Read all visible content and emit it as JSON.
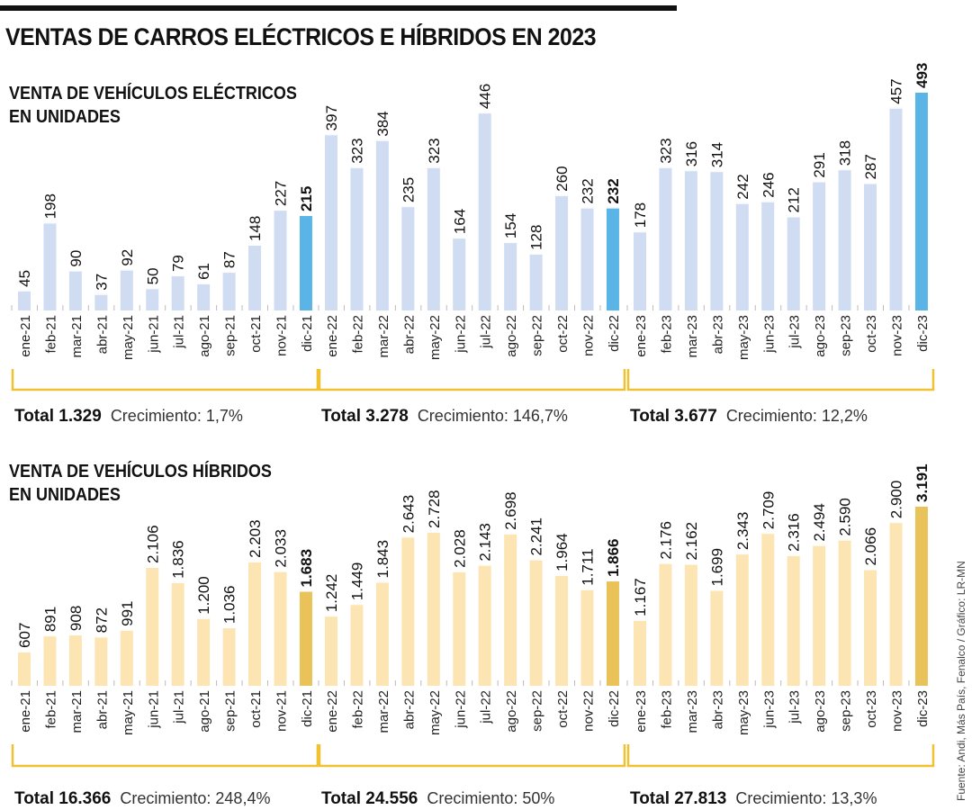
{
  "title": "VENTAS DE CARROS ELÉCTRICOS E HÍBRIDOS EN 2023",
  "source": "Fuente: Andi, Más País, Fenalco / Gráfico: LR-MN",
  "chart_data": [
    {
      "type": "bar",
      "title": "VENTA DE VEHÍCULOS ELÉCTRICOS EN UNIDADES",
      "title_lines": [
        "VENTA DE VEHÍCULOS ELÉCTRICOS",
        "EN UNIDADES"
      ],
      "colors": {
        "bar": "#cfdcf2",
        "highlight": "#5ab4e5",
        "bracket": "#f0c231"
      },
      "grid": false,
      "groups": [
        {
          "categories": [
            "ene-21",
            "feb-21",
            "mar-21",
            "abr-21",
            "may-21",
            "jun-21",
            "jul-21",
            "ago-21",
            "sep-21",
            "oct-21",
            "nov-21",
            "dic-21"
          ],
          "values": [
            45,
            198,
            90,
            37,
            92,
            50,
            79,
            61,
            87,
            148,
            227,
            215
          ],
          "value_labels": [
            "45",
            "198",
            "90",
            "37",
            "92",
            "50",
            "79",
            "61",
            "87",
            "148",
            "227",
            "215"
          ],
          "total_label": "Total 1.329",
          "growth_label": "Crecimiento: 1,7%"
        },
        {
          "categories": [
            "ene-22",
            "feb-22",
            "mar-22",
            "abr-22",
            "may-22",
            "jun-22",
            "jul-22",
            "ago-22",
            "sep-22",
            "oct-22",
            "nov-22",
            "dic-22"
          ],
          "values": [
            397,
            323,
            384,
            235,
            323,
            164,
            446,
            154,
            128,
            260,
            232,
            232
          ],
          "value_labels": [
            "397",
            "323",
            "384",
            "235",
            "323",
            "164",
            "446",
            "154",
            "128",
            "260",
            "232",
            "232"
          ],
          "total_label": "Total 3.278",
          "growth_label": "Crecimiento: 146,7%"
        },
        {
          "categories": [
            "ene-23",
            "feb-23",
            "mar-23",
            "abr-23",
            "may-23",
            "jun-23",
            "jul-23",
            "ago-23",
            "sep-23",
            "oct-23",
            "nov-23",
            "dic-23"
          ],
          "values": [
            178,
            323,
            316,
            314,
            242,
            246,
            212,
            291,
            318,
            287,
            457,
            493
          ],
          "value_labels": [
            "178",
            "323",
            "316",
            "314",
            "242",
            "246",
            "212",
            "291",
            "318",
            "287",
            "457",
            "493"
          ],
          "total_label": "Total 3.677",
          "growth_label": "Crecimiento: 12,2%"
        }
      ]
    },
    {
      "type": "bar",
      "title": "VENTA DE VEHÍCULOS HÍBRIDOS EN UNIDADES",
      "title_lines": [
        "VENTA DE VEHÍCULOS HÍBRIDOS",
        "EN UNIDADES"
      ],
      "colors": {
        "bar": "#fde5b3",
        "highlight": "#e9c25a",
        "bracket": "#f0c231"
      },
      "grid": false,
      "groups": [
        {
          "categories": [
            "ene-21",
            "feb-21",
            "mar-21",
            "abr-21",
            "may-21",
            "jun-21",
            "jul-21",
            "ago-21",
            "sep-21",
            "oct-21",
            "nov-21",
            "dic-21"
          ],
          "values": [
            607,
            891,
            908,
            872,
            991,
            2106,
            1836,
            1200,
            1036,
            2203,
            2033,
            1683
          ],
          "value_labels": [
            "607",
            "891",
            "908",
            "872",
            "991",
            "2.106",
            "1.836",
            "1.200",
            "1.036",
            "2.203",
            "2.033",
            "1.683"
          ],
          "total_label": "Total 16.366",
          "growth_label": "Crecimiento: 248,4%"
        },
        {
          "categories": [
            "ene-22",
            "feb-22",
            "mar-22",
            "abr-22",
            "may-22",
            "jun-22",
            "jul-22",
            "ago-22",
            "sep-22",
            "oct-22",
            "nov-22",
            "dic-22"
          ],
          "values": [
            1242,
            1449,
            1843,
            2643,
            2728,
            2028,
            2143,
            2698,
            2241,
            1964,
            1711,
            1866
          ],
          "value_labels": [
            "1.242",
            "1.449",
            "1.843",
            "2.643",
            "2.728",
            "2.028",
            "2.143",
            "2.698",
            "2.241",
            "1.964",
            "1.711",
            "1.866"
          ],
          "total_label": "Total 24.556",
          "growth_label": "Crecimiento: 50%"
        },
        {
          "categories": [
            "ene-23",
            "feb-23",
            "mar-23",
            "abr-23",
            "may-23",
            "jun-23",
            "jul-23",
            "ago-23",
            "sep-23",
            "oct-23",
            "nov-23",
            "dic-23"
          ],
          "values": [
            1167,
            2176,
            2162,
            1699,
            2343,
            2709,
            2316,
            2494,
            2590,
            2066,
            2900,
            3191
          ],
          "value_labels": [
            "1.167",
            "2.176",
            "2.162",
            "1.699",
            "2.343",
            "2.709",
            "2.316",
            "2.494",
            "2.590",
            "2.066",
            "2.900",
            "3.191"
          ],
          "total_label": "Total 27.813",
          "growth_label": "Crecimiento: 13,3%"
        }
      ]
    }
  ]
}
